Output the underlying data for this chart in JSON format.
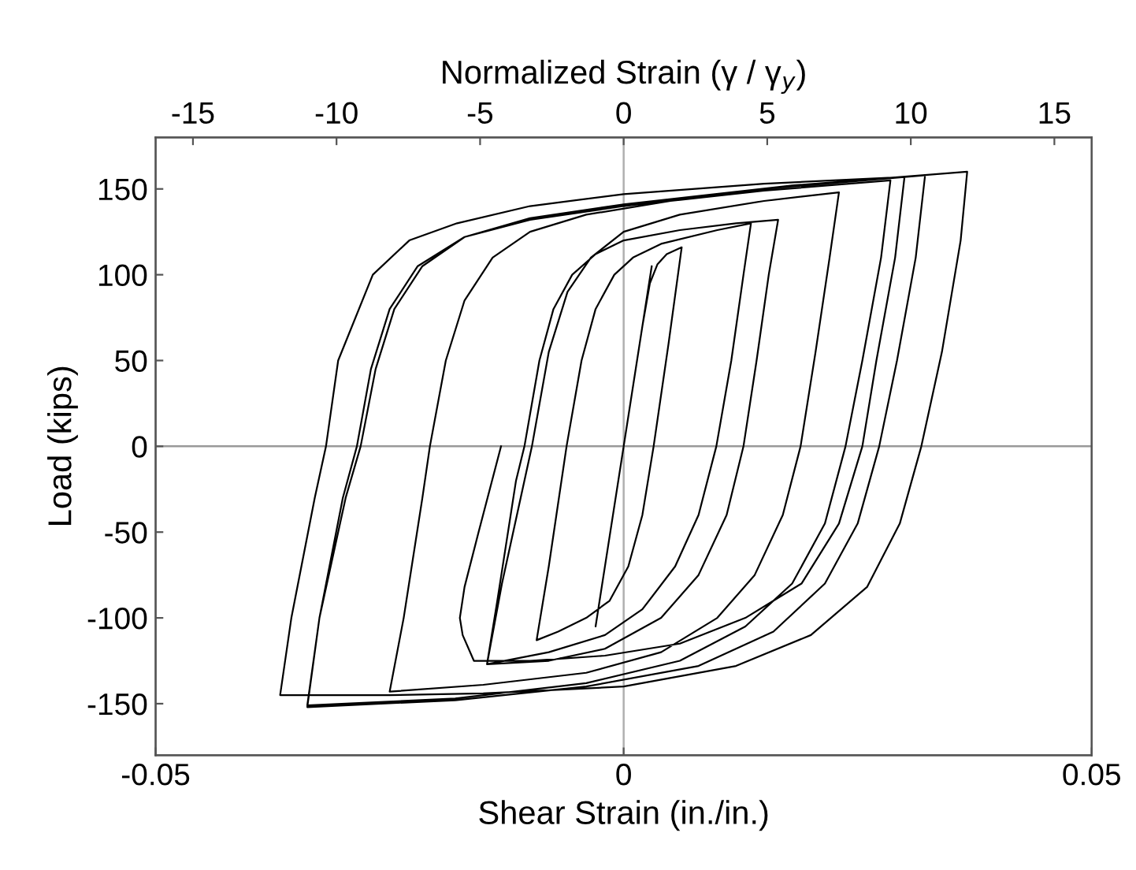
{
  "chart_data": {
    "type": "line",
    "xlabel": "Shear Strain (in./in.)",
    "ylabel": "Load (kips)",
    "x2label": "Normalized Strain (γ / γ$_{y}$)",
    "xlim": [
      -0.05,
      0.05
    ],
    "xticks": [
      -0.05,
      0,
      0.05
    ],
    "ylim": [
      -180,
      180
    ],
    "yticks": [
      -150,
      -100,
      -50,
      0,
      50,
      100,
      150
    ],
    "x2lim": [
      -16.3,
      16.3
    ],
    "x2ticks": [
      -15,
      -10,
      -5,
      0,
      5,
      10,
      15
    ],
    "grid": false,
    "marker": "none",
    "line_style": "solid",
    "ref_lines": [
      {
        "axis": "x",
        "value": 0,
        "color": "#b0b0b0"
      },
      {
        "axis": "y",
        "value": 0,
        "color": "#999999"
      }
    ],
    "series": [
      {
        "color": "#000000",
        "x": [
          0,
          0.003,
          0,
          -0.003,
          0,
          0.001,
          0.002,
          0.0028,
          0.0036,
          0.0046,
          0.0062,
          0.0048,
          0.0032,
          0.002,
          0.0005,
          -0.0015,
          -0.004,
          -0.007,
          -0.0093,
          -0.008,
          -0.0061,
          -0.0045,
          -0.003,
          -0.001,
          0.001,
          0.004,
          0.01,
          0.0136,
          0.0128,
          0.0115,
          0.0099,
          0.008,
          0.0055,
          0.002,
          -0.002,
          -0.008,
          -0.0146,
          -0.0135,
          -0.0115,
          -0.0106,
          -0.009,
          -0.0075,
          -0.0055,
          -0.003,
          0,
          0.006,
          0.012,
          0.0165,
          0.0155,
          0.0142,
          0.0128,
          0.011,
          0.008,
          0.004,
          -0.002,
          -0.008,
          -0.0146,
          -0.013,
          -0.0098,
          -0.008,
          -0.006,
          -0.0035,
          0,
          0.006,
          0.015,
          0.023,
          0.022,
          0.0205,
          0.0189,
          0.017,
          0.014,
          0.01,
          0.004,
          -0.004,
          -0.015,
          -0.025,
          -0.0235,
          -0.0215,
          -0.0207,
          -0.019,
          -0.017,
          -0.014,
          -0.01,
          -0.004,
          0.005,
          0.015,
          0.0285,
          0.0275,
          0.0255,
          0.0237,
          0.0215,
          0.018,
          0.013,
          0.006,
          -0.004,
          -0.018,
          -0.0338,
          -0.0325,
          -0.03,
          -0.0285,
          -0.027,
          -0.025,
          -0.022,
          -0.017,
          -0.01,
          0,
          0.015,
          0.0322,
          0.0312,
          0.0292,
          0.0273,
          0.025,
          0.0215,
          0.016,
          0.008,
          -0.004,
          -0.018,
          -0.0338,
          -0.0325,
          -0.0297,
          -0.0281,
          -0.0265,
          -0.0245,
          -0.0215,
          -0.017,
          -0.01,
          0,
          0.018,
          0.0367,
          0.036,
          0.034,
          0.0318,
          0.0295,
          0.026,
          0.02,
          0.012,
          0,
          -0.015,
          -0.025,
          -0.0367,
          -0.0355,
          -0.033,
          -0.0318,
          -0.0305,
          -0.0268,
          -0.0229,
          -0.0178,
          -0.01,
          0,
          0.015,
          0.03,
          0.029,
          0.027,
          0.0255,
          0.023,
          0.019,
          0.013,
          0.006,
          -0.002,
          -0.01,
          -0.016,
          -0.0172,
          -0.0175,
          -0.017,
          -0.0155,
          -0.0131
        ],
        "values": [
          0,
          105,
          0,
          -105,
          0,
          35,
          70,
          95,
          106,
          112,
          116,
          60,
          0,
          -40,
          -70,
          -90,
          -100,
          -108,
          -113,
          -70,
          0,
          50,
          80,
          100,
          110,
          118,
          126,
          130,
          100,
          50,
          0,
          -40,
          -70,
          -95,
          -110,
          -120,
          -127,
          -90,
          -20,
          0,
          50,
          80,
          100,
          112,
          120,
          126,
          130,
          132,
          100,
          50,
          0,
          -40,
          -75,
          -100,
          -118,
          -125,
          -127,
          -80,
          0,
          55,
          90,
          110,
          125,
          135,
          143,
          148,
          110,
          55,
          0,
          -40,
          -75,
          -100,
          -120,
          -132,
          -139,
          -143,
          -100,
          -30,
          0,
          50,
          85,
          110,
          125,
          135,
          143,
          149,
          155,
          110,
          50,
          0,
          -45,
          -80,
          -105,
          -125,
          -138,
          -147,
          -151,
          -100,
          -30,
          0,
          45,
          80,
          105,
          122,
          132,
          140,
          150,
          158,
          110,
          50,
          0,
          -45,
          -80,
          -108,
          -128,
          -140,
          -148,
          -152,
          -100,
          -30,
          0,
          45,
          80,
          105,
          122,
          133,
          141,
          152,
          160,
          120,
          55,
          0,
          -45,
          -82,
          -110,
          -128,
          -140,
          -144,
          -145,
          -145,
          -100,
          -30,
          0,
          50,
          100,
          120,
          130,
          140,
          147,
          153,
          157,
          110,
          50,
          0,
          -45,
          -80,
          -100,
          -115,
          -122,
          -125,
          -125,
          -110,
          -100,
          -82,
          -50,
          0
        ]
      }
    ]
  }
}
